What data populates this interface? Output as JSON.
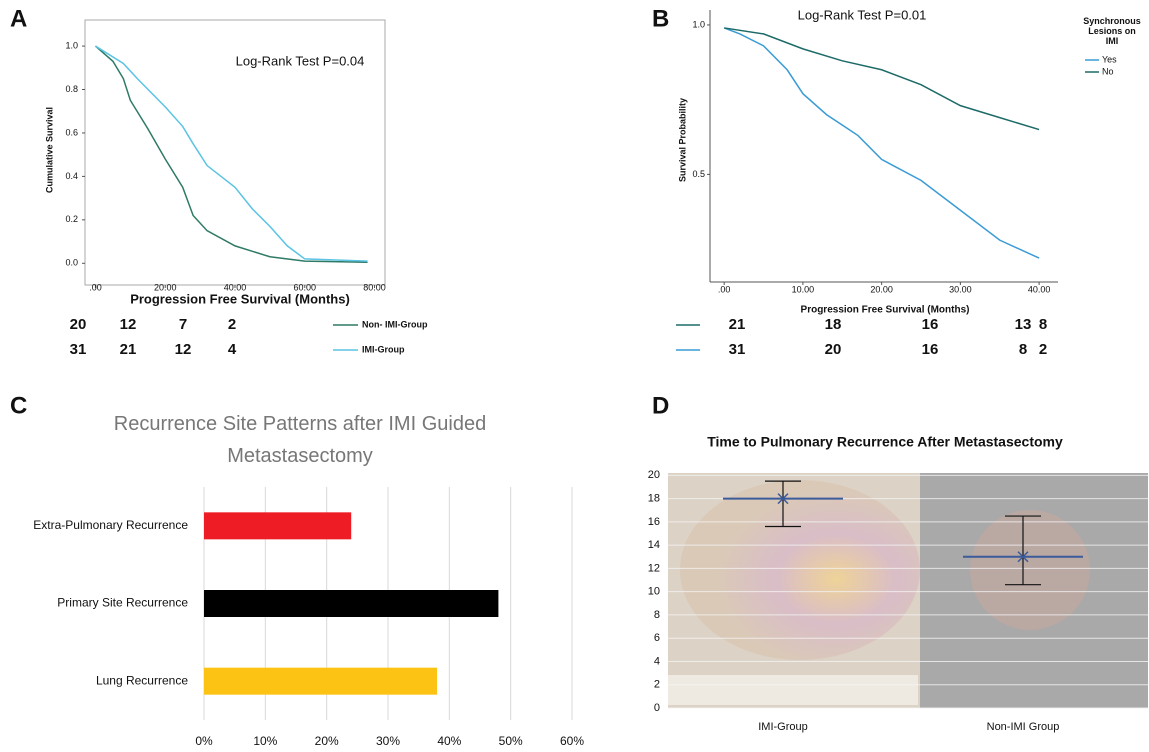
{
  "chart_data": [
    {
      "type": "line",
      "label": "A",
      "annotation": "Log-Rank Test P=0.04",
      "xlabel": "Progression Free Survival (Months)",
      "ylabel": "Cumulative Survival",
      "xlim": [
        -3,
        83
      ],
      "ylim": [
        -0.1,
        1.12
      ],
      "xticks": [
        {
          "value": 0,
          "label": ".00"
        },
        {
          "value": 20,
          "label": "20.00"
        },
        {
          "value": 40,
          "label": "40.00"
        },
        {
          "value": 60,
          "label": "60.00"
        },
        {
          "value": 80,
          "label": "80.00"
        }
      ],
      "yticks": [
        {
          "value": 0,
          "label": "0.0"
        },
        0.2,
        0.4,
        0.6,
        0.8,
        {
          "value": 1,
          "label": "1.0"
        }
      ],
      "series": [
        {
          "name": "Non- IMI-Group",
          "color": "#2e7a66",
          "x": [
            0,
            5,
            8,
            10,
            15,
            20,
            25,
            28,
            32,
            40,
            50,
            60,
            78
          ],
          "values": [
            1.0,
            0.93,
            0.85,
            0.75,
            0.62,
            0.48,
            0.35,
            0.22,
            0.15,
            0.08,
            0.03,
            0.01,
            0.005
          ],
          "at_risk": [
            20,
            12,
            7,
            2
          ]
        },
        {
          "name": "IMI-Group",
          "color": "#5bc3e3",
          "x": [
            0,
            8,
            12,
            20,
            25,
            28,
            32,
            40,
            45,
            50,
            55,
            60,
            78
          ],
          "values": [
            1.0,
            0.92,
            0.85,
            0.72,
            0.63,
            0.55,
            0.45,
            0.35,
            0.25,
            0.17,
            0.08,
            0.02,
            0.01
          ],
          "at_risk": [
            31,
            21,
            12,
            4
          ]
        }
      ]
    },
    {
      "type": "line",
      "label": "B",
      "annotation": "Log-Rank Test P=0.01",
      "xlabel": "Progression Free Survival (Months)",
      "ylabel": "Survival Probability",
      "legend_title": "Synchronous Lesions on IMI",
      "xlim": [
        -1.8,
        42.4
      ],
      "ylim": [
        0.14,
        1.05
      ],
      "xticks": [
        {
          "value": 0,
          "label": ".00"
        },
        {
          "value": 10,
          "label": "10.00"
        },
        {
          "value": 20,
          "label": "20.00"
        },
        {
          "value": 30,
          "label": "30.00"
        },
        {
          "value": 40,
          "label": "40.00"
        }
      ],
      "yticks": [
        0.5,
        {
          "value": 1,
          "label": "1.0"
        }
      ],
      "series": [
        {
          "name": "Yes",
          "color": "#3a9bd5",
          "x": [
            0,
            2,
            5,
            8,
            10,
            13,
            17,
            20,
            25,
            30,
            35,
            40
          ],
          "values": [
            0.99,
            0.97,
            0.93,
            0.85,
            0.77,
            0.7,
            0.63,
            0.55,
            0.48,
            0.38,
            0.28,
            0.22
          ],
          "at_risk": [
            31,
            20,
            16,
            8,
            2
          ]
        },
        {
          "name": "No",
          "color": "#1d6b68",
          "x": [
            0,
            5,
            10,
            15,
            20,
            25,
            30,
            35,
            40
          ],
          "values": [
            0.99,
            0.97,
            0.92,
            0.88,
            0.85,
            0.8,
            0.73,
            0.69,
            0.65
          ],
          "at_risk": [
            21,
            18,
            16,
            13,
            8
          ]
        }
      ]
    },
    {
      "type": "hbar",
      "label": "C",
      "title": "Recurrence Site Patterns after IMI Guided Metastasectomy",
      "categories": [
        "Extra-Pulmonary Recurrence",
        "Primary Site Recurrence",
        "Lung Recurrence"
      ],
      "values": [
        24,
        48,
        38
      ],
      "colors": [
        "#ee1c25",
        "#000000",
        "#fcc314"
      ],
      "xlim": [
        0,
        60
      ],
      "xticks": [
        {
          "value": 0,
          "label": "0%"
        },
        {
          "value": 10,
          "label": "10%"
        },
        {
          "value": 20,
          "label": "20%"
        },
        {
          "value": 30,
          "label": "30%"
        },
        {
          "value": 40,
          "label": "40%"
        },
        {
          "value": 50,
          "label": "50%"
        },
        {
          "value": 60,
          "label": "60%"
        }
      ],
      "grid": true
    },
    {
      "type": "errorbar",
      "label": "D",
      "title": "Time to Pulmonary Recurrence After Metastasectomy",
      "categories": [
        "IMI-Group",
        "Non-IMI Group"
      ],
      "values": [
        18,
        13
      ],
      "lower": [
        15.6,
        10.6
      ],
      "upper": [
        19.5,
        16.5
      ],
      "mean_color": "#3b5b9a",
      "error_color": "#111111",
      "ylim": [
        0,
        20.2
      ],
      "yticks": [
        0,
        2,
        4,
        6,
        8,
        10,
        12,
        14,
        16,
        18,
        20
      ],
      "grid": true
    }
  ]
}
